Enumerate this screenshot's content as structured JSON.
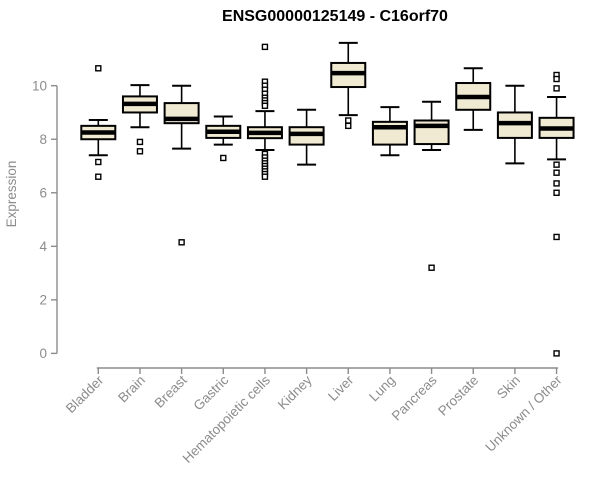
{
  "chart_data": {
    "type": "boxplot",
    "title": "ENSG00000125149 - C16orf70",
    "ylabel": "Expression",
    "xlabel": "",
    "ylim": [
      0,
      10
    ],
    "yticks": [
      0,
      2,
      4,
      6,
      8,
      10
    ],
    "grid": false,
    "legend": false,
    "x_label_rotation_deg": 45,
    "categories": [
      "Bladder",
      "Brain",
      "Breast",
      "Gastric",
      "Hematopoietic cells",
      "Kidney",
      "Liver",
      "Lung",
      "Pancreas",
      "Prostate",
      "Skin",
      "Unknown / Other"
    ],
    "series": [
      {
        "category": "Bladder",
        "whisker_low": 7.4,
        "q1": 8.0,
        "median": 8.25,
        "q3": 8.5,
        "whisker_high": 8.72,
        "outliers": [
          10.65,
          7.15,
          6.6
        ]
      },
      {
        "category": "Brain",
        "whisker_low": 8.45,
        "q1": 9.0,
        "median": 9.32,
        "q3": 9.6,
        "whisker_high": 10.02,
        "outliers": [
          7.9,
          7.55
        ]
      },
      {
        "category": "Breast",
        "whisker_low": 7.65,
        "q1": 8.6,
        "median": 8.76,
        "q3": 9.35,
        "whisker_high": 10.0,
        "outliers": [
          4.15
        ]
      },
      {
        "category": "Gastric",
        "whisker_low": 7.8,
        "q1": 8.05,
        "median": 8.28,
        "q3": 8.5,
        "whisker_high": 8.85,
        "outliers": [
          7.3
        ]
      },
      {
        "category": "Hematopoietic cells",
        "whisker_low": 7.6,
        "q1": 8.04,
        "median": 8.24,
        "q3": 8.45,
        "whisker_high": 9.05,
        "outliers": [
          11.45,
          10.15,
          10.0,
          9.85,
          9.7,
          9.55,
          9.45,
          9.35,
          9.25,
          7.45,
          7.32,
          7.2,
          7.1,
          7.0,
          6.9,
          6.8,
          6.7,
          6.6
        ]
      },
      {
        "category": "Kidney",
        "whisker_low": 7.05,
        "q1": 7.8,
        "median": 8.2,
        "q3": 8.45,
        "whisker_high": 9.1,
        "outliers": []
      },
      {
        "category": "Liver",
        "whisker_low": 8.9,
        "q1": 9.95,
        "median": 10.47,
        "q3": 10.85,
        "whisker_high": 11.6,
        "outliers": [
          8.7,
          8.5
        ]
      },
      {
        "category": "Lung",
        "whisker_low": 7.4,
        "q1": 7.8,
        "median": 8.45,
        "q3": 8.65,
        "whisker_high": 9.2,
        "outliers": []
      },
      {
        "category": "Pancreas",
        "whisker_low": 7.6,
        "q1": 7.82,
        "median": 8.5,
        "q3": 8.7,
        "whisker_high": 9.4,
        "outliers": [
          3.2
        ]
      },
      {
        "category": "Prostate",
        "whisker_low": 8.35,
        "q1": 9.1,
        "median": 9.58,
        "q3": 10.1,
        "whisker_high": 10.65,
        "outliers": []
      },
      {
        "category": "Skin",
        "whisker_low": 7.1,
        "q1": 8.05,
        "median": 8.6,
        "q3": 9.0,
        "whisker_high": 10.0,
        "outliers": []
      },
      {
        "category": "Unknown / Other",
        "whisker_low": 7.25,
        "q1": 8.05,
        "median": 8.4,
        "q3": 8.8,
        "whisker_high": 9.58,
        "outliers": [
          10.4,
          10.25,
          9.9,
          7.05,
          6.75,
          6.35,
          6.0,
          4.35,
          0.0
        ]
      }
    ],
    "colors": {
      "box_fill": "#f0ead2",
      "box_stroke": "#000000",
      "median": "#000000",
      "whisker": "#000000",
      "outlier_fill": "#ffffff",
      "outlier_stroke": "#000000",
      "axis": "#8c8c8c",
      "title": "#000000",
      "background": "#ffffff"
    }
  }
}
